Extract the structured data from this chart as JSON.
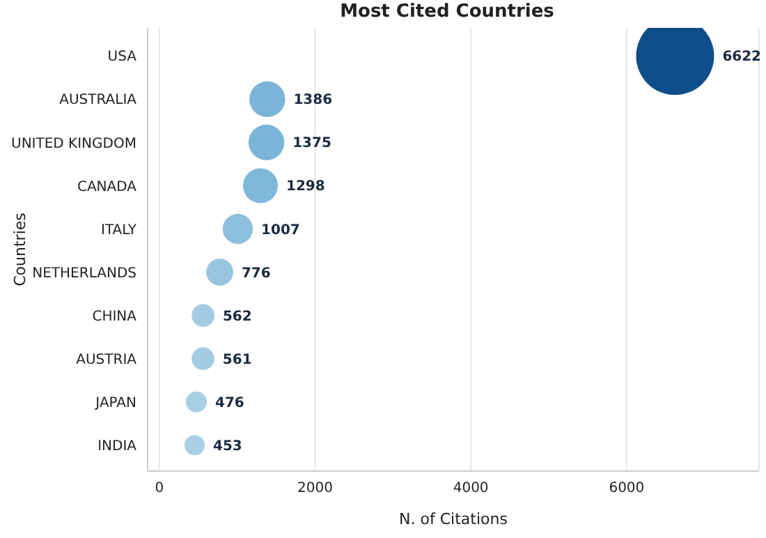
{
  "chart_data": {
    "type": "bubble",
    "orientation": "horizontal",
    "title": "Most Cited Countries",
    "xlabel": "N. of Citations",
    "ylabel": "Countries",
    "categories": [
      "USA",
      "AUSTRALIA",
      "UNITED KINGDOM",
      "CANADA",
      "ITALY",
      "NETHERLANDS",
      "CHINA",
      "AUSTRIA",
      "JAPAN",
      "INDIA"
    ],
    "values": [
      6622,
      1386,
      1375,
      1298,
      1007,
      776,
      562,
      561,
      476,
      453
    ],
    "sizes": [
      1,
      0.21,
      0.21,
      0.2,
      0.15,
      0.12,
      0.085,
      0.085,
      0.072,
      0.068
    ],
    "colors": [
      "#0f4c8a",
      "#7ab4d8",
      "#7ab4d8",
      "#80b8da",
      "#8dc0dd",
      "#98c6e0",
      "#a3cce3",
      "#a3cce3",
      "#a9cfe5",
      "#abd0e5"
    ],
    "xlim": [
      -150,
      7700
    ],
    "xticks": [
      0,
      2000,
      4000,
      6000
    ],
    "grid": "x",
    "data_labels": true
  }
}
